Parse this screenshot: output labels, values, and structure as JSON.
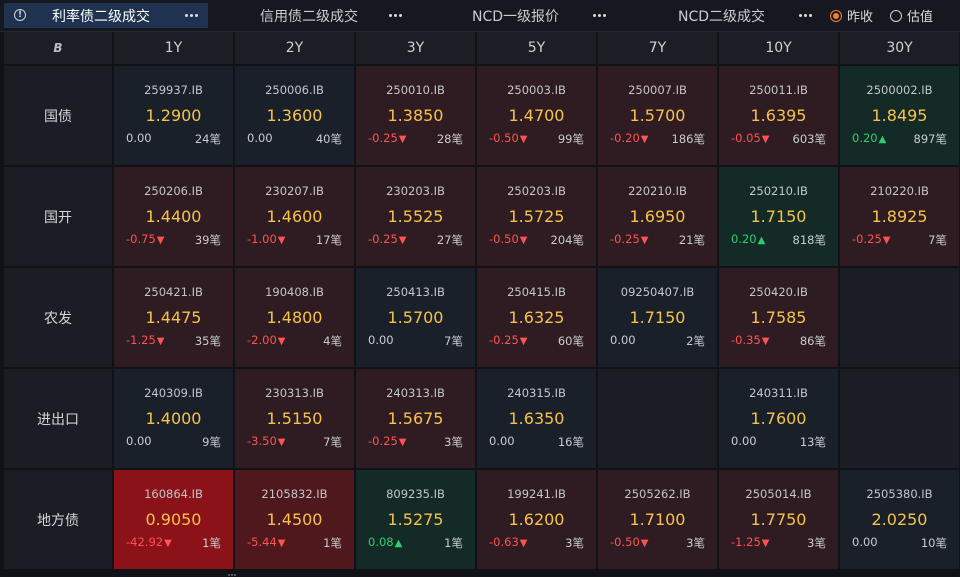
{
  "tabs": [
    {
      "label": "利率债二级成交",
      "active": true
    },
    {
      "label": "信用债二级成交",
      "active": false
    },
    {
      "label": "NCD一级报价",
      "active": false
    },
    {
      "label": "NCD二级成交",
      "active": false
    }
  ],
  "radio": {
    "options": [
      {
        "label": "昨收",
        "checked": true
      },
      {
        "label": "估值",
        "checked": false
      }
    ]
  },
  "table": {
    "corner_label": "B",
    "columns": [
      "1Y",
      "2Y",
      "3Y",
      "5Y",
      "7Y",
      "10Y",
      "30Y"
    ],
    "rows": [
      {
        "label": "国债",
        "cells": [
          {
            "code": "259937.IB",
            "yield": "1.2900",
            "change": "0.00",
            "count": "24笔",
            "dir": "zero",
            "tone": "neutral"
          },
          {
            "code": "250006.IB",
            "yield": "1.3600",
            "change": "0.00",
            "count": "40笔",
            "dir": "zero",
            "tone": "neutral"
          },
          {
            "code": "250010.IB",
            "yield": "1.3850",
            "change": "-0.25",
            "count": "28笔",
            "dir": "neg",
            "tone": "down"
          },
          {
            "code": "250003.IB",
            "yield": "1.4700",
            "change": "-0.50",
            "count": "99笔",
            "dir": "neg",
            "tone": "down"
          },
          {
            "code": "250007.IB",
            "yield": "1.5700",
            "change": "-0.20",
            "count": "186笔",
            "dir": "neg",
            "tone": "down"
          },
          {
            "code": "250011.IB",
            "yield": "1.6395",
            "change": "-0.05",
            "count": "603笔",
            "dir": "neg",
            "tone": "down"
          },
          {
            "code": "2500002.IB",
            "yield": "1.8495",
            "change": "0.20",
            "count": "897笔",
            "dir": "pos",
            "tone": "up"
          }
        ]
      },
      {
        "label": "国开",
        "cells": [
          {
            "code": "250206.IB",
            "yield": "1.4400",
            "change": "-0.75",
            "count": "39笔",
            "dir": "neg",
            "tone": "down"
          },
          {
            "code": "230207.IB",
            "yield": "1.4600",
            "change": "-1.00",
            "count": "17笔",
            "dir": "neg",
            "tone": "down"
          },
          {
            "code": "230203.IB",
            "yield": "1.5525",
            "change": "-0.25",
            "count": "27笔",
            "dir": "neg",
            "tone": "down"
          },
          {
            "code": "250203.IB",
            "yield": "1.5725",
            "change": "-0.50",
            "count": "204笔",
            "dir": "neg",
            "tone": "down"
          },
          {
            "code": "220210.IB",
            "yield": "1.6950",
            "change": "-0.25",
            "count": "21笔",
            "dir": "neg",
            "tone": "down"
          },
          {
            "code": "250210.IB",
            "yield": "1.7150",
            "change": "0.20",
            "count": "818笔",
            "dir": "pos",
            "tone": "up"
          },
          {
            "code": "210220.IB",
            "yield": "1.8925",
            "change": "-0.25",
            "count": "7笔",
            "dir": "neg",
            "tone": "down"
          }
        ]
      },
      {
        "label": "农发",
        "cells": [
          {
            "code": "250421.IB",
            "yield": "1.4475",
            "change": "-1.25",
            "count": "35笔",
            "dir": "neg",
            "tone": "down"
          },
          {
            "code": "190408.IB",
            "yield": "1.4800",
            "change": "-2.00",
            "count": "4笔",
            "dir": "neg",
            "tone": "down"
          },
          {
            "code": "250413.IB",
            "yield": "1.5700",
            "change": "0.00",
            "count": "7笔",
            "dir": "zero",
            "tone": "neutral"
          },
          {
            "code": "250415.IB",
            "yield": "1.6325",
            "change": "-0.25",
            "count": "60笔",
            "dir": "neg",
            "tone": "down"
          },
          {
            "code": "09250407.IB",
            "yield": "1.7150",
            "change": "0.00",
            "count": "2笔",
            "dir": "zero",
            "tone": "neutral"
          },
          {
            "code": "250420.IB",
            "yield": "1.7585",
            "change": "-0.35",
            "count": "86笔",
            "dir": "neg",
            "tone": "down"
          },
          null
        ]
      },
      {
        "label": "进出口",
        "cells": [
          {
            "code": "240309.IB",
            "yield": "1.4000",
            "change": "0.00",
            "count": "9笔",
            "dir": "zero",
            "tone": "neutral"
          },
          {
            "code": "230313.IB",
            "yield": "1.5150",
            "change": "-3.50",
            "count": "7笔",
            "dir": "neg",
            "tone": "down"
          },
          {
            "code": "240313.IB",
            "yield": "1.5675",
            "change": "-0.25",
            "count": "3笔",
            "dir": "neg",
            "tone": "down"
          },
          {
            "code": "240315.IB",
            "yield": "1.6350",
            "change": "0.00",
            "count": "16笔",
            "dir": "zero",
            "tone": "neutral"
          },
          null,
          {
            "code": "240311.IB",
            "yield": "1.7600",
            "change": "0.00",
            "count": "13笔",
            "dir": "zero",
            "tone": "neutral"
          },
          null
        ]
      },
      {
        "label": "地方债",
        "cells": [
          {
            "code": "160864.IB",
            "yield": "0.9050",
            "change": "-42.92",
            "count": "1笔",
            "dir": "neg",
            "tone": "strong-down"
          },
          {
            "code": "2105832.IB",
            "yield": "1.4500",
            "change": "-5.44",
            "count": "1笔",
            "dir": "neg",
            "tone": "mid-down"
          },
          {
            "code": "809235.IB",
            "yield": "1.5275",
            "change": "0.08",
            "count": "1笔",
            "dir": "pos",
            "tone": "up"
          },
          {
            "code": "199241.IB",
            "yield": "1.6200",
            "change": "-0.63",
            "count": "3笔",
            "dir": "neg",
            "tone": "down"
          },
          {
            "code": "2505262.IB",
            "yield": "1.7100",
            "change": "-0.50",
            "count": "3笔",
            "dir": "neg",
            "tone": "down"
          },
          {
            "code": "2505014.IB",
            "yield": "1.7750",
            "change": "-1.25",
            "count": "3笔",
            "dir": "neg",
            "tone": "down"
          },
          {
            "code": "2505380.IB",
            "yield": "2.0250",
            "change": "0.00",
            "count": "10笔",
            "dir": "zero",
            "tone": "neutral"
          }
        ]
      }
    ]
  },
  "colors": {
    "accent_orange": "#ff7d2e",
    "yield_gold": "#f6c34a",
    "down_red": "#ff5252",
    "up_green": "#2ccf6e",
    "active_tab": "#1f3350"
  },
  "icons": {
    "info": "info-circle-icon",
    "more": "more-dots-icon",
    "corner": "bond-logo-icon"
  }
}
